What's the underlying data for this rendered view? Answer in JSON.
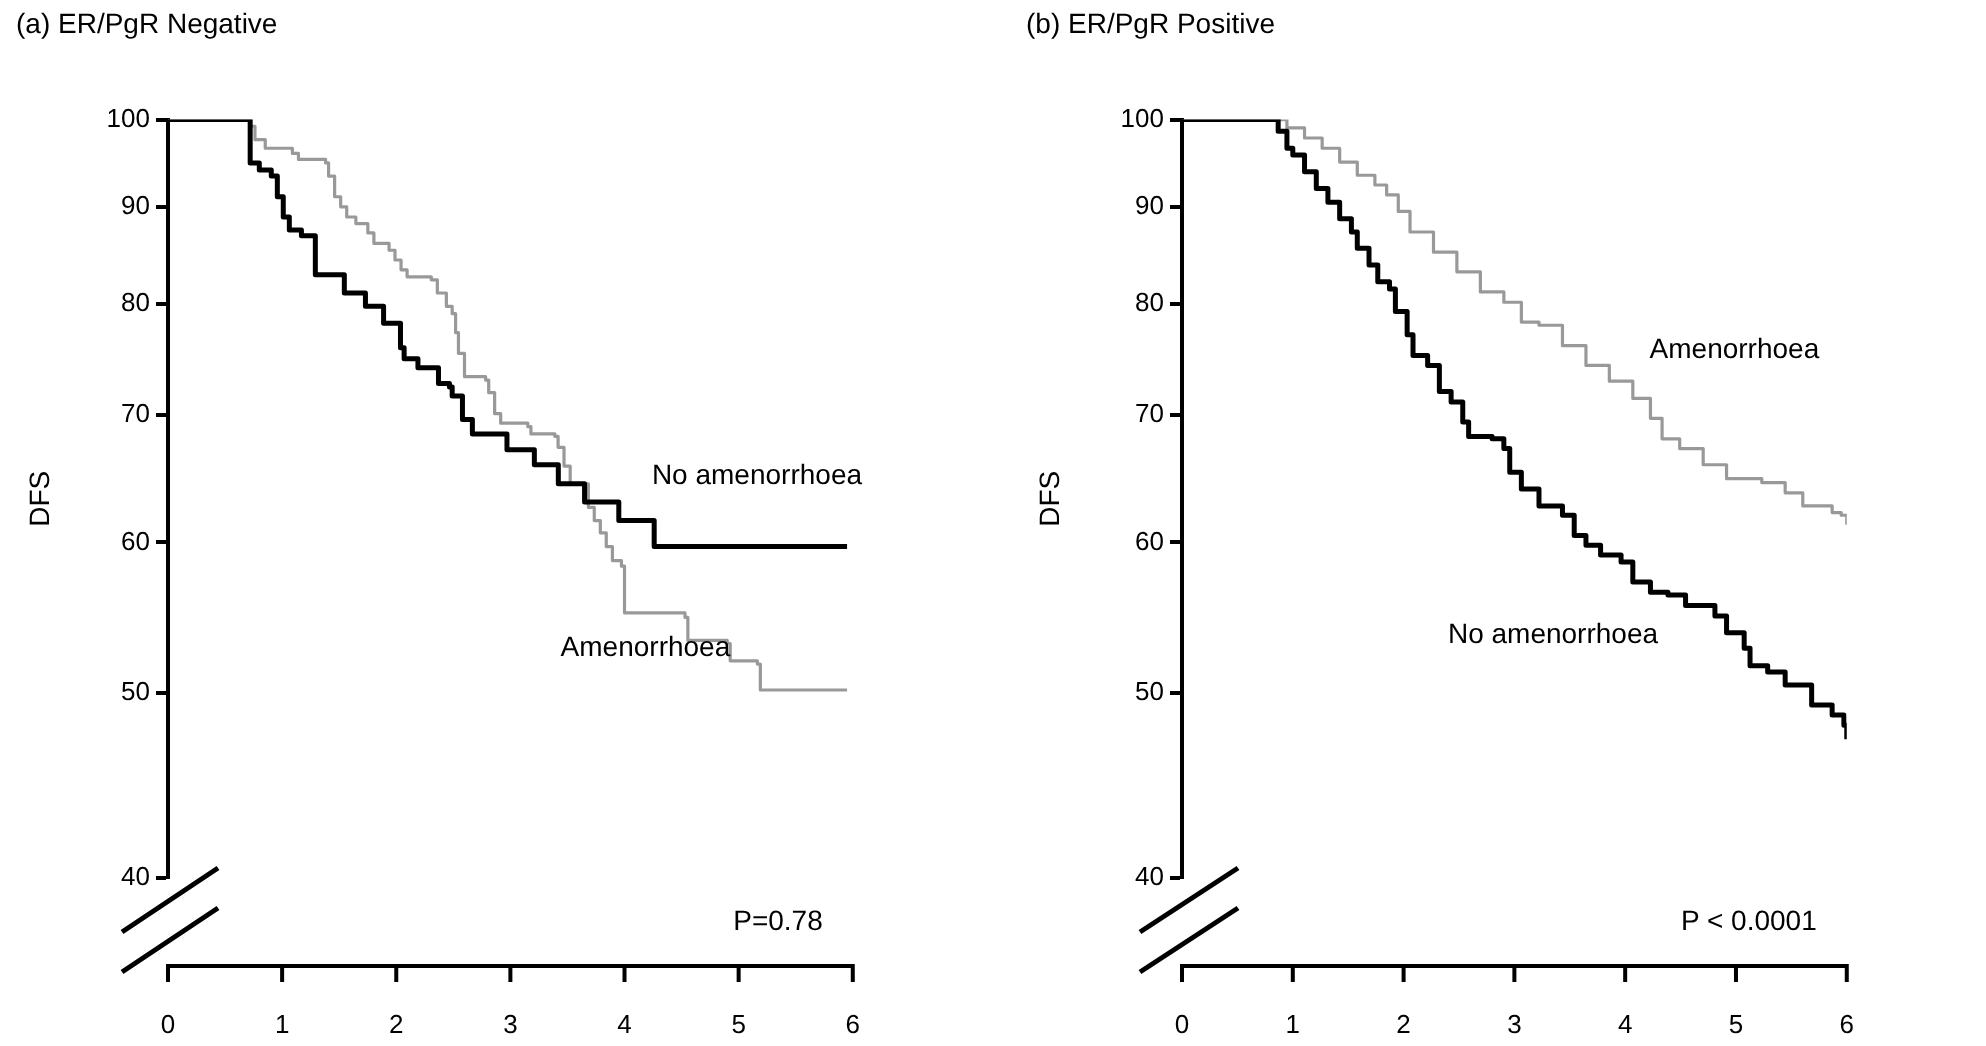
{
  "chart_data": [
    {
      "type": "step",
      "title": "(a) ER/PgR Negative",
      "ylabel": "DFS",
      "xlim": [
        0,
        6
      ],
      "xticks": [
        0,
        1,
        2,
        3,
        4,
        5,
        6
      ],
      "ylim": [
        40,
        100
      ],
      "yticks": [
        40,
        50,
        60,
        70,
        80,
        90,
        100
      ],
      "log": true,
      "grid": false,
      "legend": false,
      "annotations": [
        "P=0.78"
      ],
      "series": [
        {
          "name": "No amenorrhoea",
          "color": "#000000",
          "x": [
            0,
            0.72,
            0.8,
            0.905,
            0.958,
            1.01,
            1.063,
            1.169,
            1.291,
            1.545,
            1.73,
            1.889,
            2.037,
            2.069,
            2.19,
            2.37,
            2.466,
            2.49,
            2.58,
            2.667,
            2.97,
            3.21,
            3.42,
            3.65,
            3.95,
            4.26,
            5.95
          ],
          "values": [
            100,
            94.9,
            94.1,
            93.4,
            91.1,
            88.9,
            87.5,
            86.9,
            82.9,
            81.1,
            79.8,
            78.2,
            75.9,
            74.9,
            74.1,
            72.7,
            72.4,
            71.6,
            69.6,
            68.4,
            67.1,
            65.9,
            64.4,
            63.0,
            61.6,
            59.7,
            59.7
          ]
        },
        {
          "name": "Amenorrhoea",
          "color": "#999999",
          "x": [
            0,
            0.72,
            0.762,
            0.852,
            1.09,
            1.143,
            1.381,
            1.407,
            1.46,
            1.513,
            1.566,
            1.646,
            1.751,
            1.804,
            1.937,
            1.989,
            2.042,
            2.095,
            2.307,
            2.36,
            2.439,
            2.49,
            2.52,
            2.545,
            2.598,
            2.783,
            2.81,
            2.862,
            2.915,
            3.153,
            3.18,
            3.39,
            3.418,
            3.47,
            3.524,
            3.683,
            3.735,
            3.788,
            3.84,
            3.894,
            3.973,
            4.0,
            4.53,
            4.555,
            4.9,
            4.926,
            5.164,
            5.19,
            5.95
          ],
          "values": [
            100,
            99.2,
            97.6,
            96.6,
            96.0,
            95.3,
            94.9,
            93.4,
            91.1,
            90.0,
            88.9,
            88.2,
            87.2,
            86.1,
            85.4,
            84.4,
            83.4,
            82.7,
            82.4,
            81.1,
            79.8,
            79.1,
            77.3,
            75.4,
            73.3,
            73.0,
            71.9,
            70.1,
            69.3,
            69.0,
            68.4,
            68.2,
            67.3,
            65.8,
            64.4,
            62.6,
            61.6,
            60.7,
            59.7,
            58.7,
            58.3,
            55.1,
            54.8,
            53.3,
            53.1,
            52.0,
            51.8,
            50.2,
            50.2
          ]
        }
      ]
    },
    {
      "type": "step",
      "title": "(b) ER/PgR Positive",
      "ylabel": "DFS",
      "xlim": [
        0,
        6
      ],
      "xticks": [
        0,
        1,
        2,
        3,
        4,
        5,
        6
      ],
      "ylim": [
        40,
        100
      ],
      "yticks": [
        40,
        50,
        60,
        70,
        80,
        90,
        100
      ],
      "log": true,
      "grid": false,
      "legend": false,
      "annotations": [
        "P < 0.0001"
      ],
      "series": [
        {
          "name": "No amenorrhoea",
          "color": "#000000",
          "x": [
            0,
            0.815,
            0.868,
            0.947,
            1.0,
            1.106,
            1.212,
            1.317,
            1.423,
            1.529,
            1.582,
            1.688,
            1.767,
            1.873,
            1.926,
            2.032,
            2.085,
            2.217,
            2.323,
            2.429,
            2.534,
            2.587,
            2.799,
            2.905,
            2.958,
            3.063,
            3.222,
            3.434,
            3.54,
            3.646,
            3.778,
            3.963,
            4.069,
            4.228,
            4.386,
            4.545,
            4.81,
            4.915,
            5.074,
            5.127,
            5.286,
            5.444,
            5.683,
            5.868,
            5.974,
            6.0
          ],
          "values": [
            100,
            100,
            98.6,
            96.6,
            95.8,
            93.9,
            92.0,
            90.5,
            88.7,
            87.3,
            85.6,
            83.9,
            82.2,
            81.5,
            79.3,
            77.1,
            75.2,
            74.3,
            72.0,
            71.1,
            69.4,
            68.2,
            68.0,
            67.2,
            65.3,
            64.0,
            62.7,
            62.0,
            60.5,
            59.8,
            59.1,
            58.6,
            57.2,
            56.5,
            56.3,
            55.6,
            54.9,
            53.8,
            52.8,
            51.7,
            51.3,
            50.5,
            49.3,
            48.7,
            48.1,
            47.3
          ]
        },
        {
          "name": "Amenorrhoea",
          "color": "#999999",
          "x": [
            0,
            0.815,
            0.947,
            1.106,
            1.265,
            1.423,
            1.582,
            1.741,
            1.847,
            1.952,
            2.058,
            2.27,
            2.481,
            2.693,
            2.905,
            3.063,
            3.222,
            3.434,
            3.646,
            3.857,
            4.069,
            4.228,
            4.333,
            4.492,
            4.704,
            4.915,
            5.233,
            5.444,
            5.603,
            5.868,
            5.95,
            6.0
          ],
          "values": [
            100,
            100,
            99.0,
            97.8,
            96.6,
            95.0,
            93.5,
            92.4,
            91.3,
            89.5,
            87.3,
            85.2,
            83.2,
            81.2,
            80.2,
            78.3,
            78.0,
            76.1,
            74.3,
            72.9,
            71.4,
            69.7,
            68.0,
            67.2,
            65.9,
            64.8,
            64.5,
            63.7,
            62.7,
            62.2,
            62.0,
            61.3
          ]
        }
      ]
    }
  ]
}
